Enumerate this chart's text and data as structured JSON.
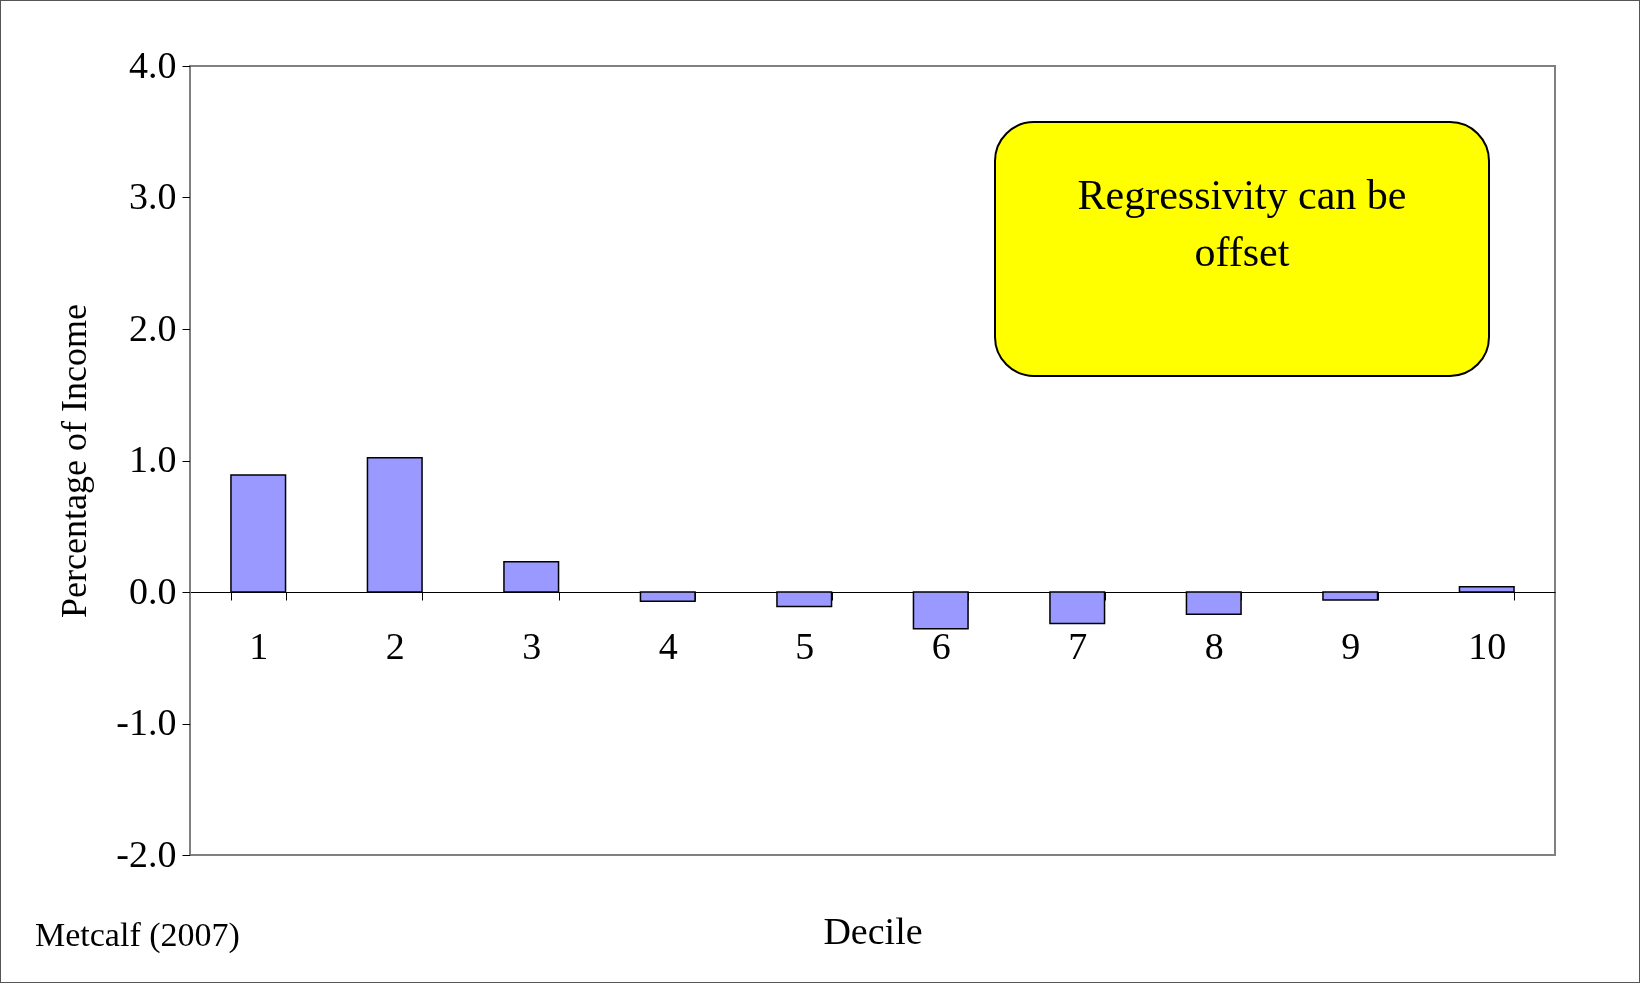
{
  "chart_data": {
    "type": "bar",
    "xlabel": "Decile",
    "ylabel": "Percentage of Income",
    "categories": [
      "1",
      "2",
      "3",
      "4",
      "5",
      "6",
      "7",
      "8",
      "9",
      "10"
    ],
    "values": [
      0.89,
      1.02,
      0.23,
      -0.07,
      -0.11,
      -0.28,
      -0.24,
      -0.17,
      -0.06,
      0.04
    ],
    "color": "#9999ff",
    "ylim": [
      -2,
      4
    ],
    "yticks": [
      {
        "value": -2,
        "label": "-2.0"
      },
      {
        "value": -1,
        "label": "-1.0"
      },
      {
        "value": 0,
        "label": "0.0"
      },
      {
        "value": 1,
        "label": "1.0"
      },
      {
        "value": 2,
        "label": "2.0"
      },
      {
        "value": 3,
        "label": "3.0"
      },
      {
        "value": 4,
        "label": "4.0"
      }
    ],
    "grid": false,
    "annotations": [
      "Regressivity can be offset",
      "Metcalf (2007)"
    ]
  }
}
